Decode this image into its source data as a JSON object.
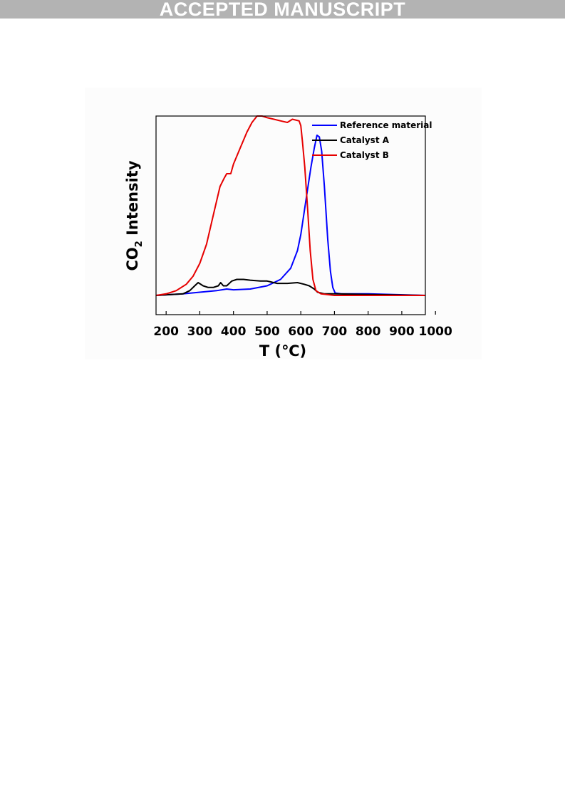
{
  "banner": {
    "text": "ACCEPTED MANUSCRIPT"
  },
  "chart_data": {
    "type": "line",
    "xlabel": "T (℃)",
    "ylabel_main": "CO",
    "ylabel_sub": "2",
    "ylabel_rest": " Intensity",
    "xlim": [
      170,
      970
    ],
    "ylim": [
      -0.12,
      1.12
    ],
    "x_ticks": [
      200,
      300,
      400,
      500,
      600,
      700,
      800,
      900,
      1000
    ],
    "y_ticks_shown": false,
    "grid": false,
    "legend_position": "top-right",
    "series": [
      {
        "name": "Reference material",
        "color": "#0000ff",
        "points": [
          [
            170,
            0
          ],
          [
            250,
            0.01
          ],
          [
            300,
            0.02
          ],
          [
            350,
            0.03
          ],
          [
            380,
            0.04
          ],
          [
            400,
            0.035
          ],
          [
            450,
            0.04
          ],
          [
            500,
            0.06
          ],
          [
            540,
            0.1
          ],
          [
            570,
            0.17
          ],
          [
            590,
            0.28
          ],
          [
            600,
            0.38
          ],
          [
            610,
            0.52
          ],
          [
            620,
            0.66
          ],
          [
            630,
            0.8
          ],
          [
            640,
            0.92
          ],
          [
            648,
            1.0
          ],
          [
            655,
            0.99
          ],
          [
            662,
            0.9
          ],
          [
            670,
            0.68
          ],
          [
            680,
            0.35
          ],
          [
            688,
            0.15
          ],
          [
            695,
            0.05
          ],
          [
            702,
            0.015
          ],
          [
            720,
            0.01
          ],
          [
            800,
            0.01
          ],
          [
            970,
            0
          ]
        ]
      },
      {
        "name": "Catalyst A",
        "color": "#000000",
        "points": [
          [
            170,
            0
          ],
          [
            250,
            0.01
          ],
          [
            270,
            0.03
          ],
          [
            285,
            0.06
          ],
          [
            295,
            0.08
          ],
          [
            310,
            0.06
          ],
          [
            325,
            0.05
          ],
          [
            340,
            0.05
          ],
          [
            355,
            0.06
          ],
          [
            362,
            0.08
          ],
          [
            370,
            0.06
          ],
          [
            380,
            0.06
          ],
          [
            395,
            0.09
          ],
          [
            410,
            0.1
          ],
          [
            430,
            0.1
          ],
          [
            450,
            0.095
          ],
          [
            480,
            0.09
          ],
          [
            500,
            0.09
          ],
          [
            530,
            0.075
          ],
          [
            560,
            0.075
          ],
          [
            590,
            0.08
          ],
          [
            610,
            0.07
          ],
          [
            625,
            0.06
          ],
          [
            640,
            0.04
          ],
          [
            650,
            0.02
          ],
          [
            670,
            0.01
          ],
          [
            700,
            0.01
          ],
          [
            970,
            0
          ]
        ]
      },
      {
        "name": "Catalyst B",
        "color": "#e60000",
        "points": [
          [
            170,
            0
          ],
          [
            200,
            0.01
          ],
          [
            230,
            0.03
          ],
          [
            260,
            0.07
          ],
          [
            280,
            0.12
          ],
          [
            300,
            0.2
          ],
          [
            320,
            0.32
          ],
          [
            340,
            0.5
          ],
          [
            360,
            0.68
          ],
          [
            372,
            0.73
          ],
          [
            380,
            0.76
          ],
          [
            392,
            0.76
          ],
          [
            400,
            0.82
          ],
          [
            420,
            0.92
          ],
          [
            440,
            1.02
          ],
          [
            455,
            1.08
          ],
          [
            470,
            1.12
          ],
          [
            485,
            1.12
          ],
          [
            500,
            1.11
          ],
          [
            520,
            1.1
          ],
          [
            540,
            1.09
          ],
          [
            560,
            1.08
          ],
          [
            575,
            1.1
          ],
          [
            595,
            1.09
          ],
          [
            600,
            1.06
          ],
          [
            605,
            0.96
          ],
          [
            612,
            0.8
          ],
          [
            620,
            0.55
          ],
          [
            628,
            0.28
          ],
          [
            636,
            0.1
          ],
          [
            645,
            0.03
          ],
          [
            660,
            0.01
          ],
          [
            700,
            0
          ],
          [
            970,
            0
          ]
        ]
      }
    ]
  }
}
